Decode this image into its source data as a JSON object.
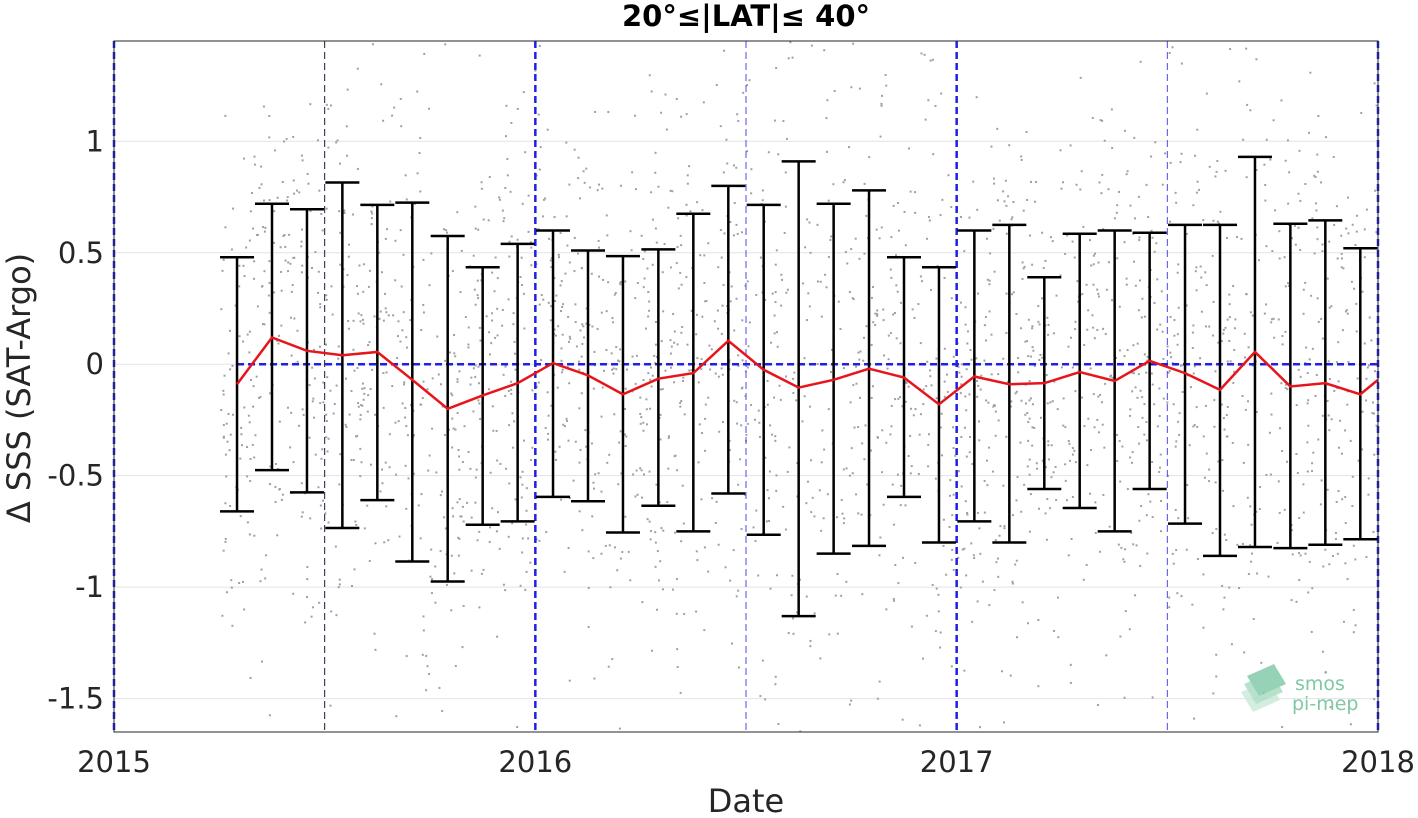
{
  "chart_data": {
    "type": "line",
    "title": "20°≤|LAT|≤ 40°",
    "xlabel": "Date",
    "ylabel": "Δ SSS (SAT-Argo)",
    "xlim": [
      2015.0,
      2018.0
    ],
    "ylim": [
      -1.65,
      1.45
    ],
    "x_ticks": [
      2015,
      2016,
      2017,
      2018
    ],
    "x_tick_labels": [
      "2015",
      "2016",
      "2017",
      "2018"
    ],
    "y_ticks": [
      1,
      0.5,
      0,
      -0.5,
      -1,
      -1.5
    ],
    "y_tick_labels": [
      "1",
      "0.5",
      "0",
      "-0.5",
      "-1",
      "-1.5"
    ],
    "grid": true,
    "reference_line": 0,
    "year_lines": [
      2015.0,
      2016.0,
      2017.0,
      2018.0
    ],
    "half_year_lines": [
      2015.5,
      2016.5,
      2017.5
    ],
    "series": [
      {
        "color": "#e8141b",
        "x": [
          2015.292,
          2015.375,
          2015.458,
          2015.542,
          2015.625,
          2015.708,
          2015.792,
          2015.875,
          2015.958,
          2016.042,
          2016.125,
          2016.208,
          2016.292,
          2016.375,
          2016.458,
          2016.542,
          2016.625,
          2016.708,
          2016.792,
          2016.875,
          2016.958,
          2017.042,
          2017.125,
          2017.208,
          2017.292,
          2017.375,
          2017.458,
          2017.542,
          2017.625,
          2017.708,
          2017.792,
          2017.875,
          2017.958
        ],
        "mean": [
          -0.09,
          0.12,
          0.06,
          0.04,
          0.055,
          -0.07,
          -0.2,
          -0.14,
          -0.085,
          0.005,
          -0.05,
          -0.135,
          -0.065,
          -0.04,
          0.105,
          -0.025,
          -0.105,
          -0.07,
          -0.02,
          -0.06,
          -0.18,
          -0.055,
          -0.09,
          -0.085,
          -0.035,
          -0.075,
          0.015,
          -0.04,
          -0.115,
          0.055,
          -0.1,
          -0.085,
          -0.135
        ],
        "upper": [
          0.48,
          0.72,
          0.695,
          0.815,
          0.715,
          0.725,
          0.575,
          0.435,
          0.54,
          0.6,
          0.51,
          0.485,
          0.515,
          0.675,
          0.8,
          0.715,
          0.91,
          0.72,
          0.78,
          0.48,
          0.435,
          0.6,
          0.625,
          0.39,
          0.585,
          0.6,
          0.59,
          0.625,
          0.625,
          0.93,
          0.63,
          0.645,
          0.52
        ],
        "lower": [
          -0.66,
          -0.475,
          -0.575,
          -0.735,
          -0.61,
          -0.885,
          -0.975,
          -0.72,
          -0.705,
          -0.595,
          -0.615,
          -0.755,
          -0.635,
          -0.75,
          -0.58,
          -0.765,
          -1.13,
          -0.85,
          -0.815,
          -0.595,
          -0.8,
          -0.705,
          -0.8,
          -0.56,
          -0.645,
          -0.75,
          -0.56,
          -0.715,
          -0.86,
          -0.82,
          -0.825,
          -0.81,
          -0.785
        ]
      }
    ]
  },
  "logo": {
    "line1": "smos",
    "line2": "pi-mep"
  },
  "colors": {
    "mean_line": "#e8141b",
    "error_bars": "#000000",
    "scatter": "#9a9a9a",
    "reference": "#1f1fe6"
  }
}
